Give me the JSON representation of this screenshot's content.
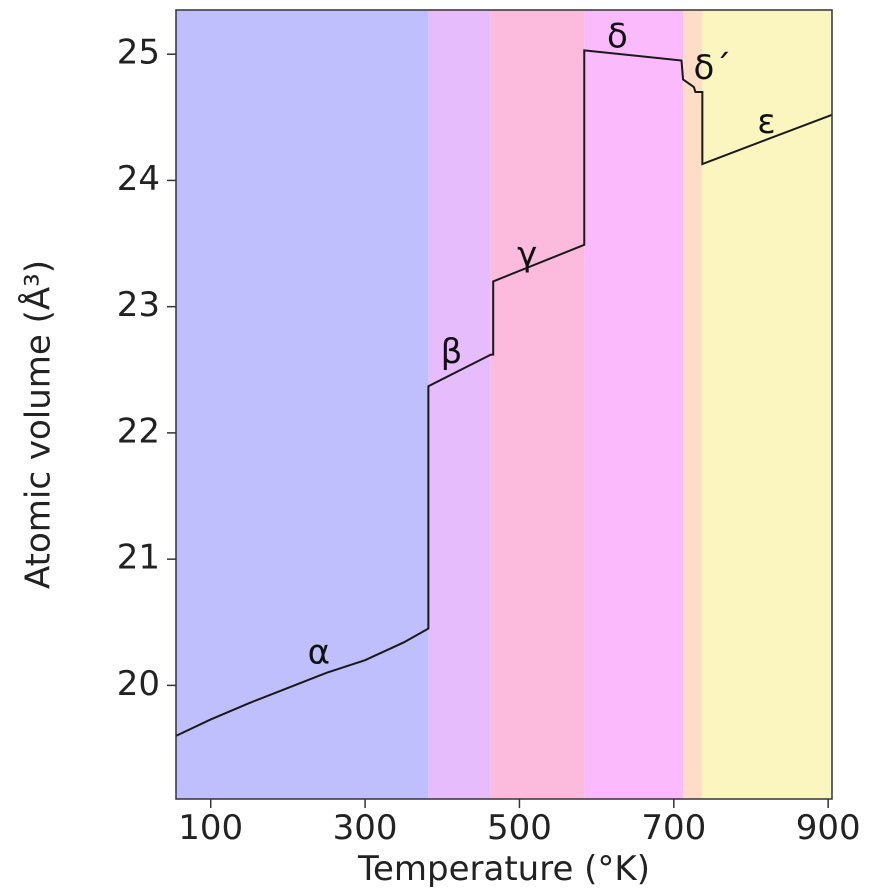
{
  "chart_data": {
    "type": "line",
    "title": "",
    "xlabel": "Temperature (°K)",
    "ylabel": "Atomic volume (Å³)",
    "xlim": [
      55,
      905
    ],
    "ylim": [
      19.1,
      25.35
    ],
    "xticks": [
      100,
      300,
      500,
      700,
      900
    ],
    "yticks": [
      20,
      21,
      22,
      23,
      24,
      25
    ],
    "grid": false,
    "legend": "none",
    "phases": [
      {
        "label": "α",
        "from": 55,
        "to": 382,
        "color": "#bfbffd",
        "label_x": 240,
        "label_y": 20.25
      },
      {
        "label": "β",
        "from": 382,
        "to": 463,
        "color": "#e7bcfc",
        "label_x": 412,
        "label_y": 22.63
      },
      {
        "label": "γ",
        "from": 463,
        "to": 584,
        "color": "#fcbbdc",
        "label_x": 510,
        "label_y": 23.4
      },
      {
        "label": "δ",
        "from": 584,
        "to": 712,
        "color": "#fbbafc",
        "label_x": 627,
        "label_y": 25.13
      },
      {
        "label": "δ´",
        "from": 712,
        "to": 737,
        "color": "#fedcc6",
        "label_x": 750,
        "label_y": 24.88
      },
      {
        "label": "ε",
        "from": 737,
        "to": 905,
        "color": "#fbf5bf",
        "label_x": 820,
        "label_y": 24.45
      }
    ],
    "series": [
      {
        "values": [
          [
            55,
            19.6
          ],
          [
            100,
            19.73
          ],
          [
            150,
            19.86
          ],
          [
            200,
            19.98
          ],
          [
            250,
            20.1
          ],
          [
            300,
            20.2
          ],
          [
            350,
            20.34
          ],
          [
            382,
            20.45
          ],
          [
            382,
            22.37
          ],
          [
            463,
            22.62
          ],
          [
            466,
            22.62
          ],
          [
            466,
            23.2
          ],
          [
            584,
            23.49
          ],
          [
            584,
            25.03
          ],
          [
            710,
            24.95
          ],
          [
            712,
            24.8
          ],
          [
            726,
            24.74
          ],
          [
            728,
            24.7
          ],
          [
            737,
            24.7
          ],
          [
            737,
            24.13
          ],
          [
            905,
            24.52
          ]
        ]
      }
    ]
  }
}
